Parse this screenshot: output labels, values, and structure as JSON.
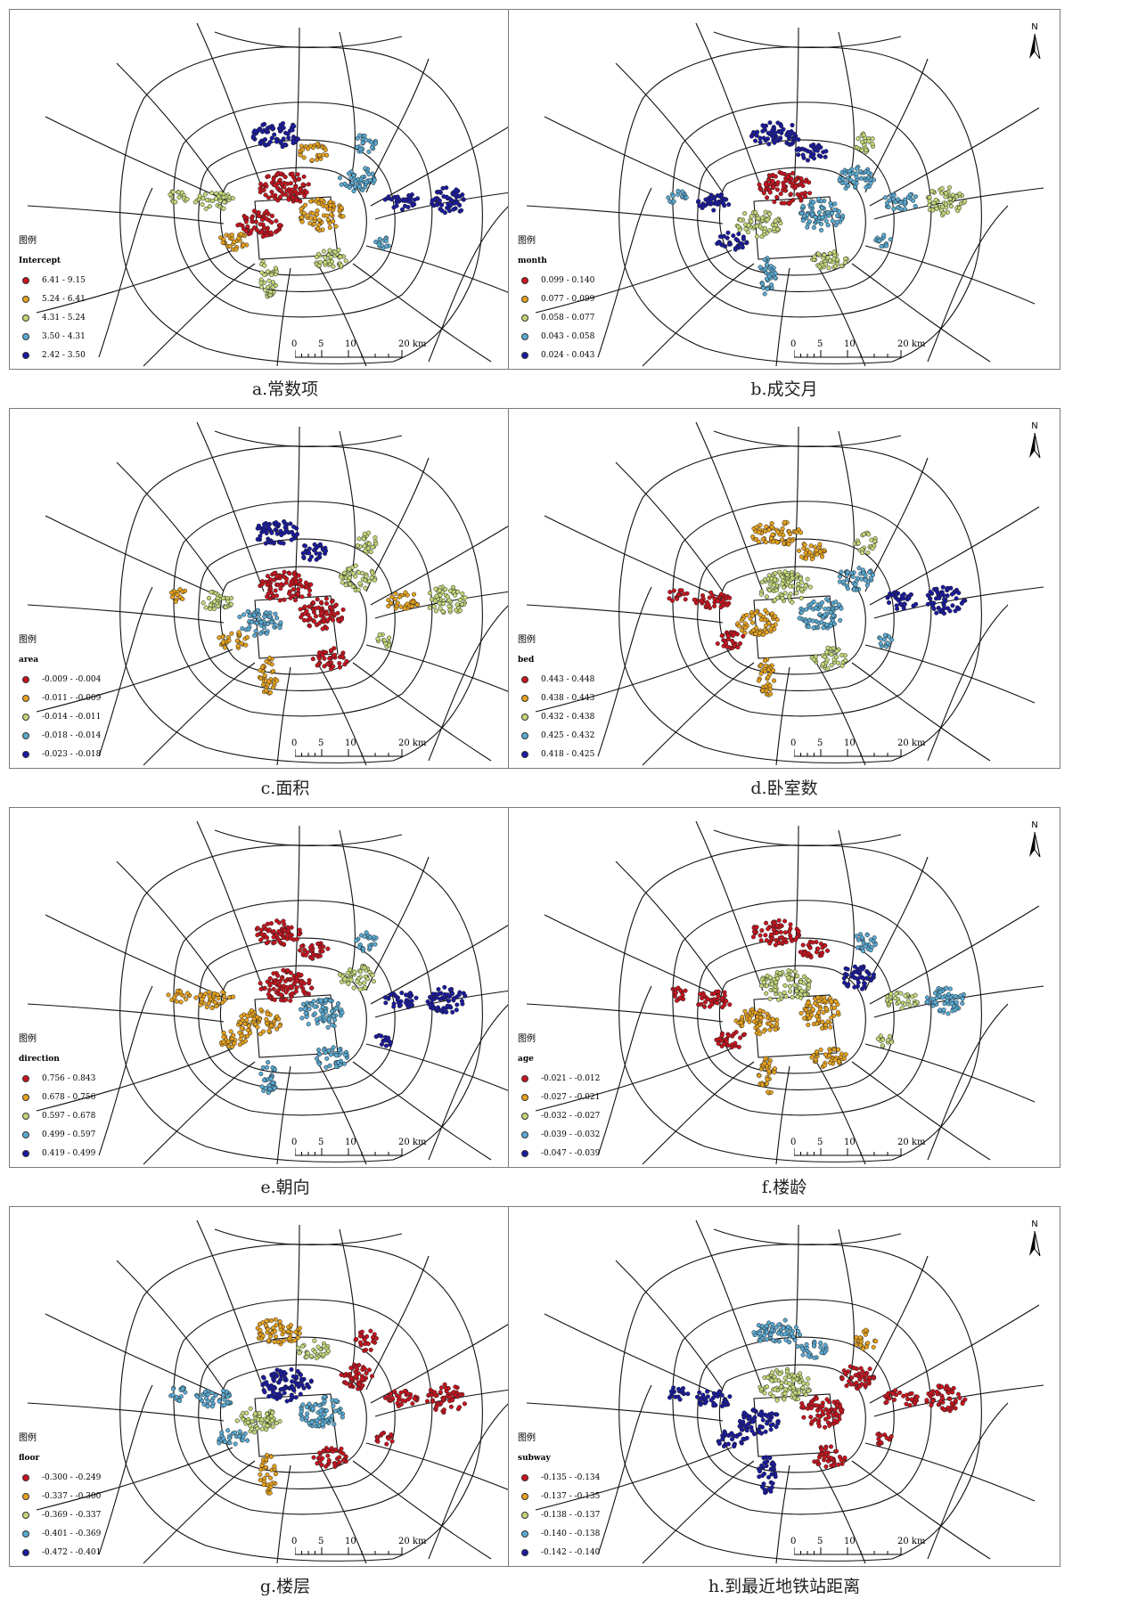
{
  "legend_title": "图例",
  "north_label": "N",
  "scale": {
    "ticks": [
      "0",
      "5",
      "10",
      "20 km"
    ]
  },
  "colors": [
    "#c8141e",
    "#e6a21e",
    "#c3d77a",
    "#5aaad2",
    "#1a1aa0"
  ],
  "panels": [
    {
      "caption": "a.常数项",
      "field": "Intercept",
      "classes": [
        "6.41 - 9.15",
        "5.24 - 6.41",
        "4.31 - 5.24",
        "3.50 - 4.31",
        "2.42 - 3.50"
      ]
    },
    {
      "caption": "b.成交月",
      "field": "month",
      "classes": [
        "0.099 - 0.140",
        "0.077 - 0.099",
        "0.058 - 0.077",
        "0.043 - 0.058",
        "0.024 - 0.043"
      ]
    },
    {
      "caption": "c.面积",
      "field": "area",
      "classes": [
        "-0.009 - -0.004",
        "-0.011 - -0.009",
        "-0.014 - -0.011",
        "-0.018 - -0.014",
        "-0.023 - -0.018"
      ]
    },
    {
      "caption": "d.卧室数",
      "field": "bed",
      "classes": [
        "0.443 - 0.448",
        "0.438 - 0.443",
        "0.432 - 0.438",
        "0.425 - 0.432",
        "0.418 - 0.425"
      ]
    },
    {
      "caption": "e.朝向",
      "field": "direction",
      "classes": [
        "0.756 - 0.843",
        "0.678 - 0.756",
        "0.597 - 0.678",
        "0.499 - 0.597",
        "0.419 - 0.499"
      ]
    },
    {
      "caption": "f.楼龄",
      "field": "age",
      "classes": [
        "-0.021 - -0.012",
        "-0.027 - -0.021",
        "-0.032 - -0.027",
        "-0.039 - -0.032",
        "-0.047 - -0.039"
      ]
    },
    {
      "caption": "g.楼层",
      "field": "floor",
      "classes": [
        "-0.300 - -0.249",
        "-0.337 - -0.300",
        "-0.369 - -0.337",
        "-0.401 - -0.369",
        "-0.472 - -0.401"
      ]
    },
    {
      "caption": "h.到最近地铁站距离",
      "field": "subway",
      "classes": [
        "-0.135 - -0.134",
        "-0.137 - -0.135",
        "-0.138 - -0.137",
        "-0.140 - -0.138",
        "-0.142 - -0.140"
      ]
    }
  ]
}
